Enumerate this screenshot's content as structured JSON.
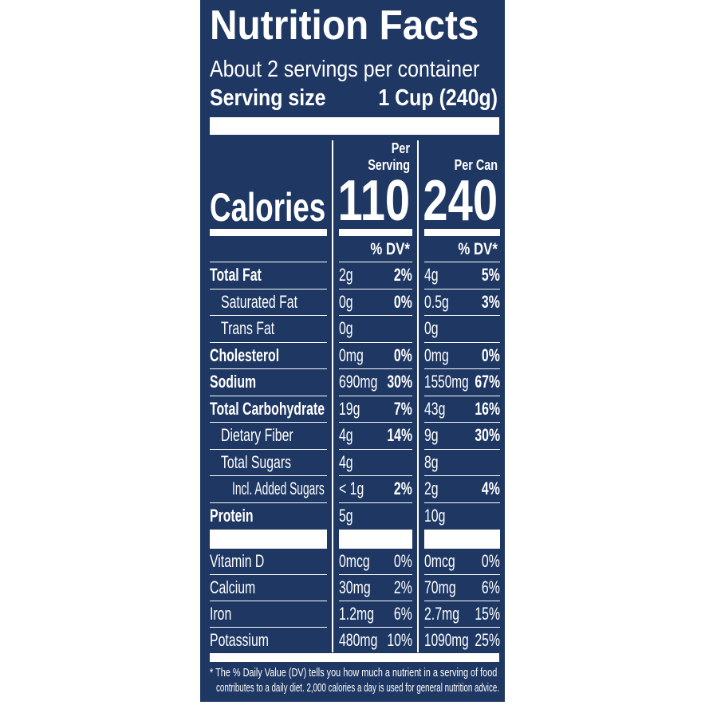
{
  "title": "Nutrition Facts",
  "servings_per_container": "About 2 servings per container",
  "serving_size_label": "Serving size",
  "serving_size_value": "1 Cup (240g)",
  "columns": [
    {
      "header_line1": "Per",
      "header_line2": "Serving",
      "calories": "110",
      "dv_label": "% DV*"
    },
    {
      "header_line1": "",
      "header_line2": "Per Can",
      "calories": "240",
      "dv_label": "% DV*"
    }
  ],
  "calories_label": "Calories",
  "nutrients": [
    {
      "name": "Total Fat",
      "bold": true,
      "indent": 0,
      "col1_amount": "2g",
      "col1_dv": "2%",
      "col2_amount": "4g",
      "col2_dv": "5%"
    },
    {
      "name": "Saturated Fat",
      "bold": false,
      "indent": 1,
      "col1_amount": "0g",
      "col1_dv": "0%",
      "col2_amount": "0.5g",
      "col2_dv": "3%"
    },
    {
      "name": "Trans Fat",
      "bold": false,
      "indent": 1,
      "col1_amount": "0g",
      "col1_dv": "",
      "col2_amount": "0g",
      "col2_dv": ""
    },
    {
      "name": "Cholesterol",
      "bold": true,
      "indent": 0,
      "col1_amount": "0mg",
      "col1_dv": "0%",
      "col2_amount": "0mg",
      "col2_dv": "0%"
    },
    {
      "name": "Sodium",
      "bold": true,
      "indent": 0,
      "col1_amount": "690mg",
      "col1_dv": "30%",
      "col2_amount": "1550mg",
      "col2_dv": "67%"
    },
    {
      "name": "Total Carbohydrate",
      "bold": true,
      "indent": 0,
      "col1_amount": "19g",
      "col1_dv": "7%",
      "col2_amount": "43g",
      "col2_dv": "16%"
    },
    {
      "name": "Dietary Fiber",
      "bold": false,
      "indent": 1,
      "col1_amount": "4g",
      "col1_dv": "14%",
      "col2_amount": "9g",
      "col2_dv": "30%"
    },
    {
      "name": "Total Sugars",
      "bold": false,
      "indent": 1,
      "col1_amount": "4g",
      "col1_dv": "",
      "col2_amount": "8g",
      "col2_dv": ""
    },
    {
      "name": "Incl. Added Sugars",
      "bold": false,
      "indent": 2,
      "col1_amount": "< 1g",
      "col1_dv": "2%",
      "col2_amount": "2g",
      "col2_dv": "4%"
    },
    {
      "name": "Protein",
      "bold": true,
      "indent": 0,
      "col1_amount": "5g",
      "col1_dv": "",
      "col2_amount": "10g",
      "col2_dv": ""
    }
  ],
  "vitamins": [
    {
      "name": "Vitamin D",
      "col1_amount": "0mcg",
      "col1_dv": "0%",
      "col2_amount": "0mcg",
      "col2_dv": "0%"
    },
    {
      "name": "Calcium",
      "col1_amount": "30mg",
      "col1_dv": "2%",
      "col2_amount": "70mg",
      "col2_dv": "6%"
    },
    {
      "name": "Iron",
      "col1_amount": "1.2mg",
      "col1_dv": "6%",
      "col2_amount": "2.7mg",
      "col2_dv": "15%"
    },
    {
      "name": "Potassium",
      "col1_amount": "480mg",
      "col1_dv": "10%",
      "col2_amount": "1090mg",
      "col2_dv": "25%"
    }
  ],
  "footnote_line1": "* The % Daily Value (DV) tells you how much a nutrient in a serving of food",
  "footnote_line2": "contributes to a daily diet. 2,000 calories a day is used for general nutrition advice.",
  "colors": {
    "background": "#1e3763",
    "text": "#ffffff"
  }
}
